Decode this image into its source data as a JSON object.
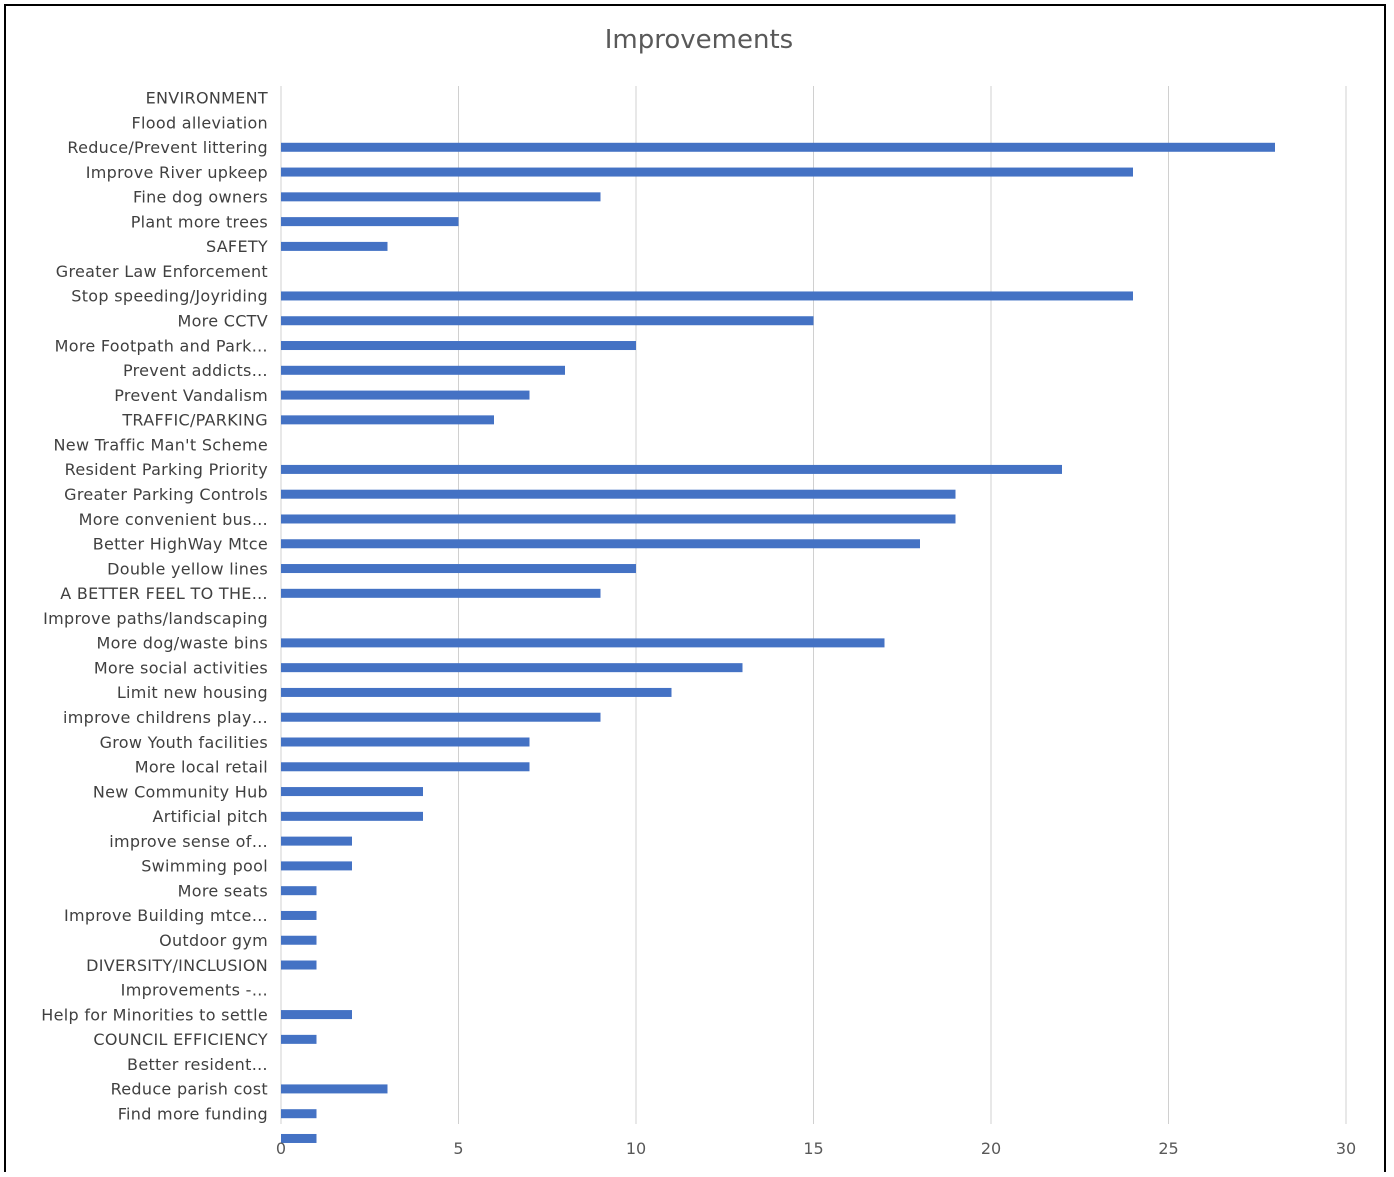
{
  "chart_data": {
    "type": "bar",
    "orientation": "horizontal",
    "title": "Improvements",
    "xlabel": "",
    "ylabel": "",
    "xlim": [
      0,
      30
    ],
    "xticks": [
      0,
      5,
      10,
      15,
      20,
      25,
      30
    ],
    "grid": "vertical",
    "bar_color": "#4472C4",
    "categories": [
      "ENVIRONMENT",
      "Flood alleviation",
      "Reduce/Prevent littering",
      "Improve River upkeep",
      "Fine dog owners",
      "Plant more trees",
      "SAFETY",
      "Greater Law Enforcement",
      "Stop speeding/Joyriding",
      "More CCTV",
      "More Footpath and Park…",
      "Prevent addicts…",
      "Prevent Vandalism",
      "TRAFFIC/PARKING",
      "New Traffic Man't Scheme",
      "Resident Parking Priority",
      "Greater Parking Controls",
      "More convenient bus…",
      "Better HighWay Mtce",
      "Double yellow lines",
      "A BETTER FEEL TO THE…",
      "Improve paths/landscaping",
      "More dog/waste bins",
      "More social activities",
      "Limit new housing",
      "improve childrens play…",
      "Grow Youth facilities",
      "More local retail",
      "New Community Hub",
      "Artificial pitch",
      "improve sense of…",
      "Swimming pool",
      "More seats",
      "Improve Building mtce…",
      "Outdoor gym",
      "DIVERSITY/INCLUSION",
      "Improvements -…",
      "Help for Minorities to settle",
      "COUNCIL EFFICIENCY",
      "Better resident…",
      "Reduce parish cost",
      "Find more funding"
    ],
    "values": [
      null,
      28,
      24,
      9,
      5,
      3,
      null,
      24,
      15,
      10,
      8,
      7,
      6,
      null,
      22,
      19,
      19,
      18,
      10,
      9,
      null,
      17,
      13,
      11,
      9,
      7,
      7,
      4,
      4,
      2,
      2,
      1,
      1,
      1,
      1,
      null,
      2,
      1,
      null,
      3,
      1,
      1
    ]
  }
}
